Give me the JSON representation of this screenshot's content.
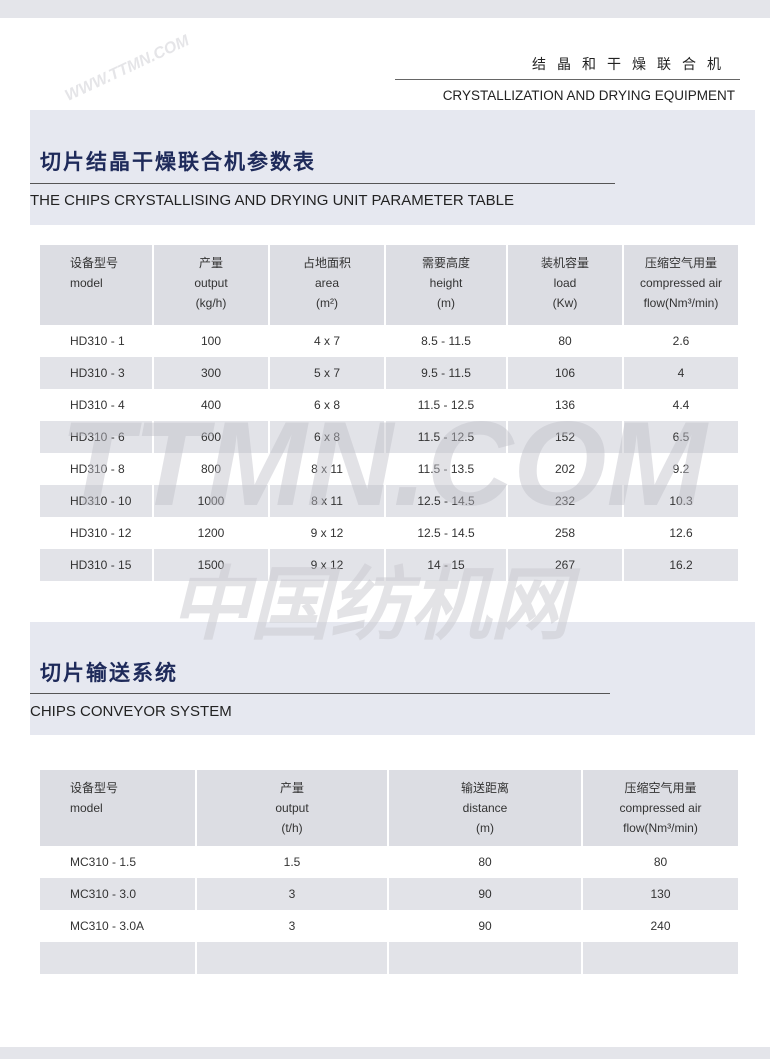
{
  "header": {
    "cn": "结晶和干燥联合机",
    "en": "CRYSTALLIZATION AND DRYING EQUIPMENT"
  },
  "section1": {
    "title_cn": "切片结晶干燥联合机参数表",
    "title_en": "THE CHIPS CRYSTALLISING AND DRYING UNIT PARAMETER TABLE",
    "columns": [
      {
        "cn": "设备型号",
        "en": "model",
        "unit": ""
      },
      {
        "cn": "产量",
        "en": "output",
        "unit": "(kg/h)"
      },
      {
        "cn": "占地面积",
        "en": "area",
        "unit": "(m²)"
      },
      {
        "cn": "需要高度",
        "en": "height",
        "unit": "(m)"
      },
      {
        "cn": "装机容量",
        "en": "load",
        "unit": "(Kw)"
      },
      {
        "cn": "压缩空气用量",
        "en": "compressed air",
        "unit": "flow(Nm³/min)"
      }
    ],
    "rows": [
      [
        "HD310 - 1",
        "100",
        "4 x 7",
        "8.5 - 11.5",
        "80",
        "2.6"
      ],
      [
        "HD310 - 3",
        "300",
        "5 x 7",
        "9.5 - 11.5",
        "106",
        "4"
      ],
      [
        "HD310 - 4",
        "400",
        "6 x 8",
        "11.5 - 12.5",
        "136",
        "4.4"
      ],
      [
        "HD310 - 6",
        "600",
        "6 x 8",
        "11.5 - 12.5",
        "152",
        "6.5"
      ],
      [
        "HD310 - 8",
        "800",
        "8 x 11",
        "11.5 - 13.5",
        "202",
        "9.2"
      ],
      [
        "HD310 - 10",
        "1000",
        "8 x 11",
        "12.5 - 14.5",
        "232",
        "10.3"
      ],
      [
        "HD310 - 12",
        "1200",
        "9 x 12",
        "12.5 - 14.5",
        "258",
        "12.6"
      ],
      [
        "HD310 - 15",
        "1500",
        "9 x 12",
        "14 - 15",
        "267",
        "16.2"
      ]
    ]
  },
  "section2": {
    "title_cn": "切片输送系统",
    "title_en": "CHIPS CONVEYOR SYSTEM",
    "columns": [
      {
        "cn": "设备型号",
        "en": "model",
        "unit": ""
      },
      {
        "cn": "产量",
        "en": "output",
        "unit": "(t/h)"
      },
      {
        "cn": "输送距离",
        "en": "distance",
        "unit": "(m)"
      },
      {
        "cn": "压缩空气用量",
        "en": "compressed air",
        "unit": "flow(Nm³/min)"
      }
    ],
    "rows": [
      [
        "MC310 - 1.5",
        "1.5",
        "80",
        "80"
      ],
      [
        "MC310 - 3.0",
        "3",
        "90",
        "130"
      ],
      [
        "MC310 - 3.0A",
        "3",
        "90",
        "240"
      ],
      [
        "",
        "",
        "",
        ""
      ]
    ]
  },
  "watermarks": [
    "TTMN.COM",
    "中国纺机网",
    "WWW.TTMN.COM"
  ]
}
